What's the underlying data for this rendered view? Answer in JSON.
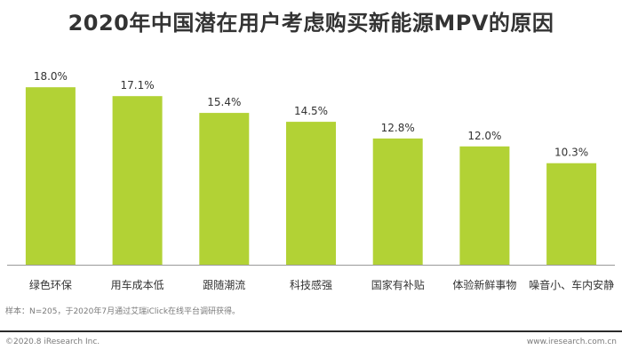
{
  "title": "2020年中国潜在用户考虑购买新能源MPV的原因",
  "chart_data": {
    "type": "bar",
    "categories": [
      "绿色环保",
      "用车成本低",
      "跟随潮流",
      "科技感强",
      "国家有补贴",
      "体验新鲜事物",
      "噪音小、车内安静"
    ],
    "values": [
      18.0,
      17.1,
      15.4,
      14.5,
      12.8,
      12.0,
      10.3
    ],
    "value_labels": [
      "18.0%",
      "17.1%",
      "15.4%",
      "14.5%",
      "12.8%",
      "12.0%",
      "10.3%"
    ],
    "ylim": [
      0,
      21
    ],
    "grid": false,
    "legend": "none",
    "bar_color": "#b2d235",
    "axis_color": "#9a9a9a",
    "label_color": "#333333"
  },
  "footnote": "样本：N=205，于2020年7月通过艾瑞iClick在线平台调研获得。",
  "copyright": "©2020.8 iResearch Inc.",
  "website": "www.iresearch.com.cn"
}
